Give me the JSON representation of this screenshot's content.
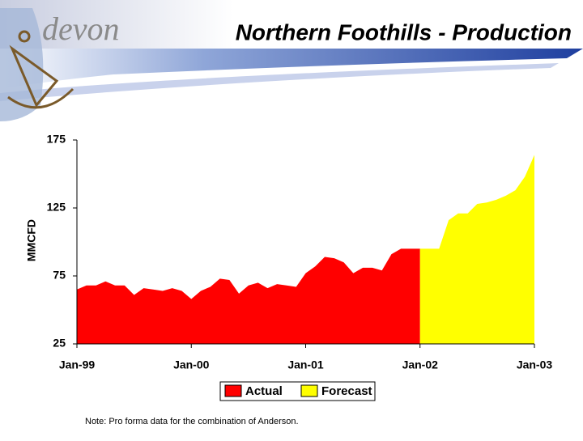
{
  "logo": "devon",
  "note": "Note:  Pro forma data for the combination of Anderson.",
  "chart_data": {
    "type": "area",
    "title": "Northern Foothills - Production",
    "y_label": "MMCFD",
    "categories": [
      "Jan-99",
      null,
      null,
      null,
      null,
      null,
      null,
      null,
      null,
      null,
      null,
      null,
      "Jan-00",
      null,
      null,
      null,
      null,
      null,
      null,
      null,
      null,
      null,
      null,
      null,
      "Jan-01",
      null,
      null,
      null,
      null,
      null,
      null,
      null,
      null,
      null,
      null,
      null,
      "Jan-02",
      null,
      null,
      null,
      null,
      null,
      null,
      null,
      null,
      null,
      null,
      null,
      "Jan-03"
    ],
    "series": [
      {
        "name": "Actual",
        "color": "#ff0000",
        "values": [
          65,
          68,
          68,
          71,
          68,
          68,
          61,
          66,
          65,
          64,
          66,
          64,
          58,
          64,
          67,
          73,
          72,
          62,
          68,
          70,
          66,
          69,
          68,
          67,
          77,
          82,
          89,
          88,
          85,
          77,
          81,
          81,
          79,
          91,
          95,
          95,
          95,
          null,
          null,
          null,
          null,
          null,
          null,
          null,
          null,
          null,
          null,
          null,
          null
        ]
      },
      {
        "name": "Forecast",
        "color": "#ffff00",
        "values": [
          null,
          null,
          null,
          null,
          null,
          null,
          null,
          null,
          null,
          null,
          null,
          null,
          null,
          null,
          null,
          null,
          null,
          null,
          null,
          null,
          null,
          null,
          null,
          null,
          null,
          null,
          null,
          null,
          null,
          null,
          null,
          null,
          null,
          null,
          null,
          null,
          95,
          95,
          95,
          116,
          121,
          121,
          128,
          129,
          131,
          134,
          138,
          148,
          164
        ]
      }
    ],
    "ylim": [
      25,
      175
    ],
    "yticks": [
      25,
      75,
      125,
      175
    ]
  }
}
